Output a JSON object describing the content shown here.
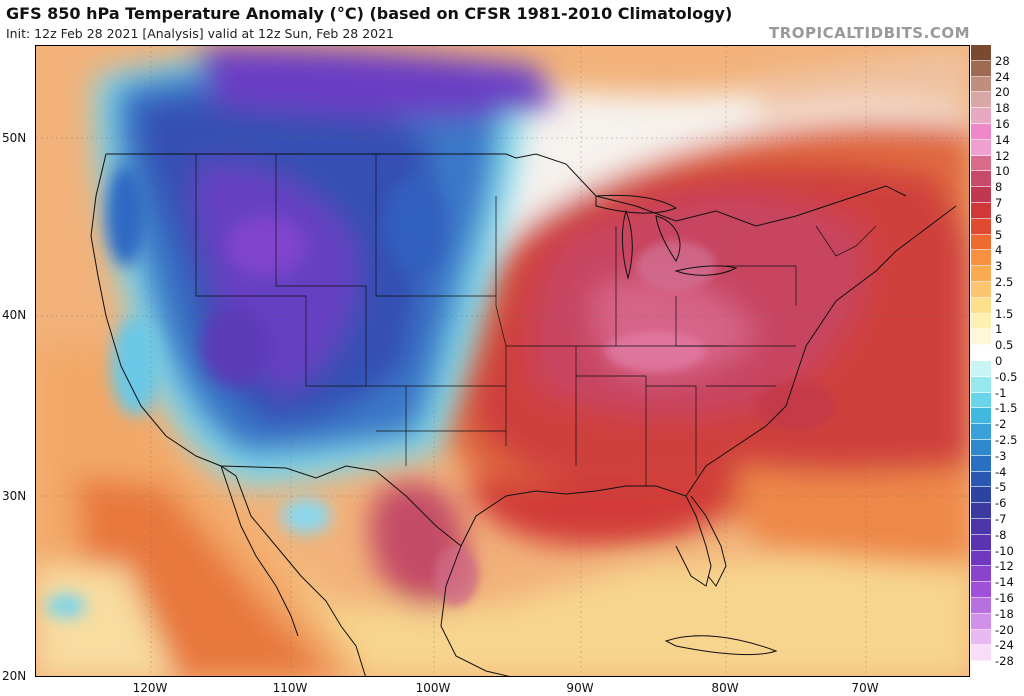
{
  "header": {
    "title": "GFS 850 hPa Temperature Anomaly (°C) (based on CFSR 1981-2010 Climatology)",
    "subtitle": "Init: 12z Feb 28 2021   [Analysis]   valid at 12z Sun, Feb 28 2021",
    "credit": "TROPICALTIDBITS.COM"
  },
  "axes": {
    "latitude_labels": [
      "50N",
      "40N",
      "30N",
      "20N"
    ],
    "longitude_labels": [
      "120W",
      "110W",
      "100W",
      "90W",
      "80W",
      "70W"
    ]
  },
  "legend": {
    "labels": [
      "28",
      "24",
      "20",
      "18",
      "16",
      "14",
      "12",
      "10",
      "8",
      "7",
      "6",
      "5",
      "4",
      "3",
      "2.5",
      "2",
      "1.5",
      "1",
      "0.5",
      "0",
      "-0.5",
      "-1",
      "-1.5",
      "-2",
      "-2.5",
      "-3",
      "-4",
      "-5",
      "-6",
      "-7",
      "-8",
      "-10",
      "-12",
      "-14",
      "-16",
      "-18",
      "-20",
      "-24",
      "-28"
    ],
    "colors": [
      "#7a4a30",
      "#9e6b52",
      "#c08d7e",
      "#d8a7a6",
      "#e8a8c0",
      "#ee88c8",
      "#f0a0d0",
      "#d86a8a",
      "#c84a6a",
      "#c03850",
      "#d03838",
      "#e04a30",
      "#f06a30",
      "#f89040",
      "#faaa50",
      "#fcc670",
      "#fde08c",
      "#fef0b0",
      "#fff8d8",
      "#ffffff",
      "#c8f4f4",
      "#96e8ee",
      "#6ad4e8",
      "#40b8e0",
      "#3aa0d8",
      "#2e88cc",
      "#2a70c0",
      "#2a58b0",
      "#2c44a0",
      "#3a3aa0",
      "#4a36a8",
      "#5a32b2",
      "#7038c0",
      "#8a44cc",
      "#a050d8",
      "#b870e0",
      "#d090e8",
      "#e8b8f0",
      "#f8dcf8"
    ]
  },
  "map": {
    "field": "850 hPa temperature anomaly",
    "warm_anomaly_region": "Eastern and Central United States",
    "cold_anomaly_region": "Western United States and Canadian Prairies"
  }
}
